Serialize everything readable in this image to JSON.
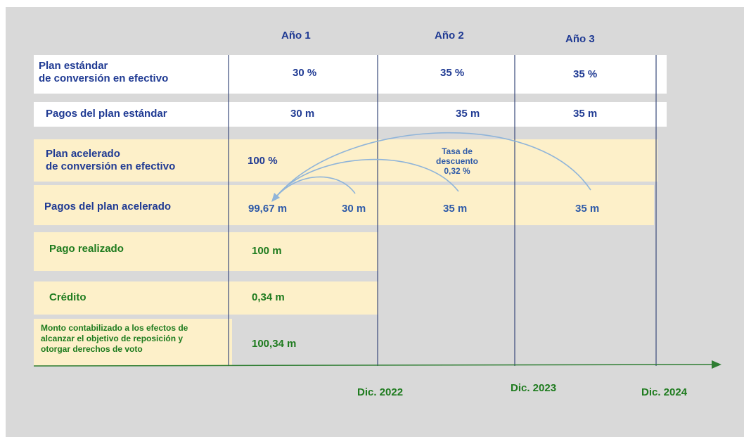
{
  "header": {
    "columns": [
      "Año 1",
      "Año 2",
      "Año 3"
    ]
  },
  "rows": [
    {
      "label": "Plan estándar\nde conversión en efectivo",
      "values": [
        "30 %",
        "35 %",
        "35 %"
      ]
    },
    {
      "label": "Pagos del plan estándar",
      "values": [
        "30 m",
        "35 m",
        "35 m"
      ]
    },
    {
      "label": "Plan acelerado\nde conversión en efectivo",
      "values": [
        "100 %"
      ],
      "annotation": "Tasa de\ndescuento\n0,32 %"
    },
    {
      "label": "Pagos del plan acelerado",
      "values": [
        "99,67 m",
        "30 m",
        "35 m",
        "35 m"
      ]
    },
    {
      "label": "Pago realizado",
      "values": [
        "100 m"
      ]
    },
    {
      "label": "Crédito",
      "values": [
        "0,34 m"
      ]
    },
    {
      "label": "Monto contabilizado a los efectos de\nalcanzar el objetivo de reposición y\notorgar derechos de voto",
      "values": [
        "100,34 m"
      ]
    }
  ],
  "timeline": [
    "Dic. 2022",
    "Dic. 2023",
    "Dic. 2024"
  ]
}
